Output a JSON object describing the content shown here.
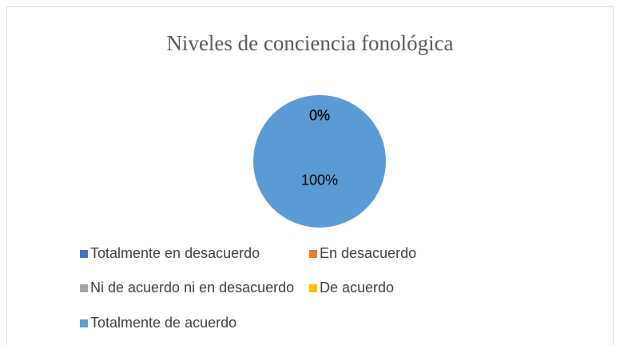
{
  "chart_data": {
    "type": "pie",
    "title": "Niveles de conciencia fonológica",
    "categories": [
      "Totalmente en desacuerdo",
      "En desacuerdo",
      "Ni de acuerdo ni en desacuerdo",
      "De acuerdo",
      "Totalmente de acuerdo"
    ],
    "values": [
      0,
      0,
      0,
      0,
      100
    ],
    "value_labels": [
      "0%",
      "0%",
      "0%",
      "0%",
      "100%"
    ],
    "colors": [
      "#4472c4",
      "#ed7d31",
      "#a5a5a5",
      "#ffc000",
      "#5b9bd5"
    ],
    "legend": "bottom"
  }
}
